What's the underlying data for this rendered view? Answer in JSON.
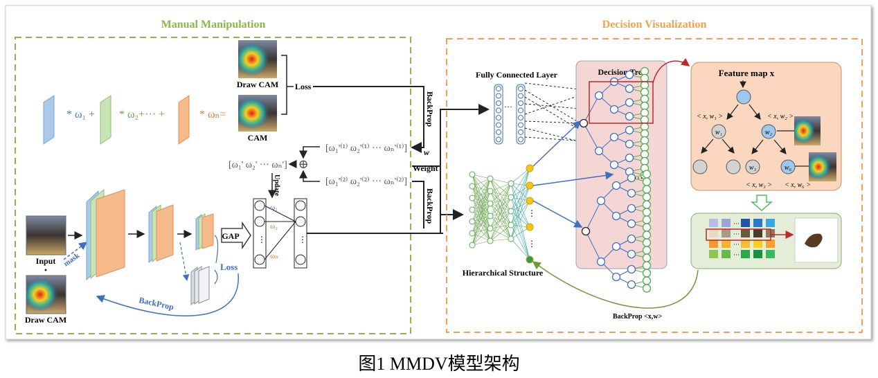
{
  "left_panel": {
    "title": "Manual Manipulation",
    "weights": [
      "* ω₁ +",
      "* ω₂+··· +",
      "* ωₙ="
    ],
    "draw_cam_top": "Draw CAM",
    "cam": "CAM",
    "loss_top": "Loss",
    "backprop_top": "BackProp",
    "backprop_mid": "BackProp",
    "weight_vec_1": "[ω₁'⁽¹⁾  ω₂'⁽¹⁾  ···  ωₙ'⁽¹⁾]",
    "weight_vec_2": "[ω₁'⁽²⁾  ω₂'⁽²⁾  ···  ωₙ'⁽²⁾]",
    "combined_vec": "[ω₁'  ω₂'  ···  ωₙ']",
    "oplus": "⊕",
    "update": "Update",
    "w_label": "w",
    "weight_label": "Weight",
    "gap": "GAP",
    "net_w1": "ω₁",
    "net_w2": "ω₂",
    "net_wn": "ωₙ",
    "input": "Input",
    "mask": "mask",
    "draw_cam_bottom": "Draw CAM",
    "loss_bottom": "Loss",
    "backprop_bottom": "BackProp"
  },
  "right_panel": {
    "title": "Decision Visualization",
    "fc_layer": "Fully Connected Layer",
    "decision_tree": "Decision Tree",
    "hierarchical": "Hierarchical Structure",
    "feature_map": "Feature map  x",
    "xw1": "< x, w₁ >",
    "xw2": "< x, w₂ >",
    "xw3": "< x, w₃ >",
    "xw6": "< x, w₆ >",
    "w1": "w₁",
    "w2": "w₂",
    "w3": "w₃",
    "w6": "w₆",
    "dots": "···",
    "backprop_xw": "BackProp <x,w>"
  },
  "caption": "图1 MMDV模型架构",
  "colors": {
    "green": "#8bb64a",
    "orange": "#f0a052",
    "blue": "#4a7cc4",
    "slab_blue": "#a9cbe9",
    "slab_green": "#c8e3b5",
    "slab_orange": "#f6b98a",
    "tree_bg": "#f4d6d4",
    "feature_bg": "#fbd7bf",
    "grid_bg": "#e3edd8"
  }
}
